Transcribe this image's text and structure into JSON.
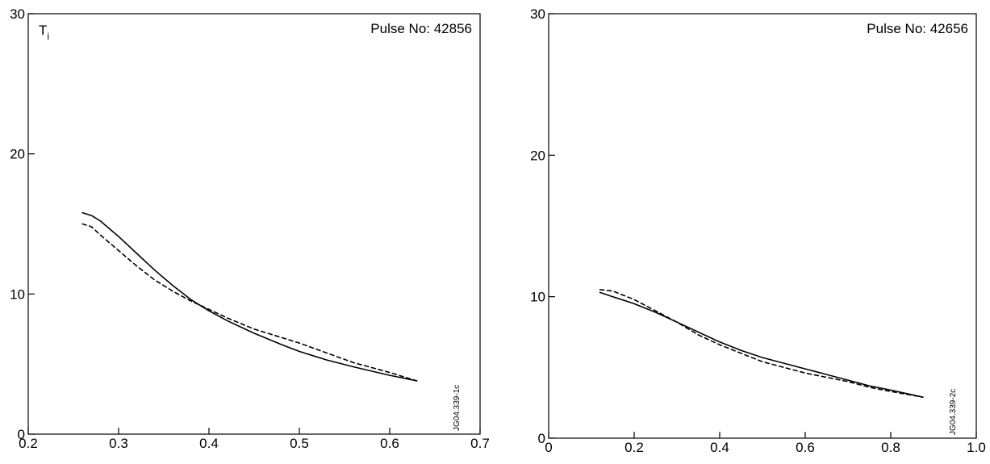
{
  "chart_data": [
    {
      "type": "line",
      "title": "",
      "panel_label": "T",
      "panel_label_sub": "i",
      "pulse_label": "Pulse No: 42856",
      "figure_code": "JG04.339-1c",
      "xlabel": "",
      "ylabel": "",
      "xlim": [
        0.2,
        0.7
      ],
      "ylim": [
        0,
        30
      ],
      "xticks": [
        0.2,
        0.3,
        0.4,
        0.5,
        0.6,
        0.7
      ],
      "xtick_labels": [
        "0.2",
        "0.3",
        "0.4",
        "0.5",
        "0.6",
        "0.7"
      ],
      "yticks": [
        0,
        10,
        20,
        30
      ],
      "ytick_labels": [
        "0",
        "10",
        "20",
        "30"
      ],
      "grid": false,
      "series": [
        {
          "style": "solid",
          "x": [
            0.26,
            0.27,
            0.28,
            0.3,
            0.32,
            0.34,
            0.36,
            0.38,
            0.4,
            0.42,
            0.45,
            0.48,
            0.5,
            0.53,
            0.56,
            0.6,
            0.63
          ],
          "y": [
            15.8,
            15.6,
            15.2,
            14.1,
            12.9,
            11.7,
            10.6,
            9.6,
            8.8,
            8.1,
            7.2,
            6.4,
            5.9,
            5.3,
            4.8,
            4.2,
            3.8
          ]
        },
        {
          "style": "dashed",
          "x": [
            0.26,
            0.27,
            0.28,
            0.3,
            0.32,
            0.34,
            0.36,
            0.38,
            0.4,
            0.42,
            0.45,
            0.48,
            0.5,
            0.53,
            0.56,
            0.6,
            0.63
          ],
          "y": [
            15.0,
            14.8,
            14.2,
            13.1,
            12.0,
            11.0,
            10.2,
            9.5,
            8.9,
            8.3,
            7.5,
            6.9,
            6.5,
            5.8,
            5.1,
            4.4,
            3.8
          ]
        }
      ]
    },
    {
      "type": "line",
      "title": "",
      "panel_label": "",
      "panel_label_sub": "",
      "pulse_label": "Pulse No: 42656",
      "figure_code": "JG04.339-2c",
      "xlabel": "",
      "ylabel": "",
      "xlim": [
        0,
        1.0
      ],
      "ylim": [
        0,
        30
      ],
      "xticks": [
        0,
        0.2,
        0.4,
        0.6,
        0.8,
        1.0
      ],
      "xtick_labels": [
        "0",
        "0.2",
        "0.4",
        "0.6",
        "0.8",
        "1.0"
      ],
      "yticks": [
        0,
        10,
        20,
        30
      ],
      "ytick_labels": [
        "0",
        "10",
        "20",
        "30"
      ],
      "grid": false,
      "series": [
        {
          "style": "solid",
          "x": [
            0.12,
            0.15,
            0.2,
            0.25,
            0.3,
            0.35,
            0.4,
            0.45,
            0.5,
            0.55,
            0.6,
            0.65,
            0.7,
            0.75,
            0.8,
            0.875
          ],
          "y": [
            10.3,
            10.0,
            9.5,
            8.9,
            8.2,
            7.5,
            6.8,
            6.2,
            5.7,
            5.3,
            4.9,
            4.5,
            4.1,
            3.7,
            3.4,
            2.9
          ]
        },
        {
          "style": "dashed",
          "x": [
            0.12,
            0.15,
            0.2,
            0.25,
            0.3,
            0.35,
            0.4,
            0.45,
            0.5,
            0.55,
            0.6,
            0.65,
            0.7,
            0.75,
            0.8,
            0.875
          ],
          "y": [
            10.5,
            10.4,
            9.8,
            9.0,
            8.2,
            7.3,
            6.6,
            6.0,
            5.4,
            5.0,
            4.6,
            4.3,
            4.0,
            3.6,
            3.3,
            2.9
          ]
        }
      ]
    }
  ]
}
